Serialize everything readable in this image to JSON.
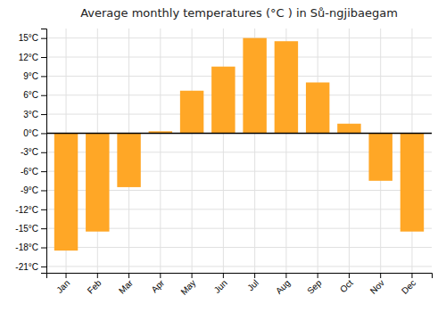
{
  "chart_data": {
    "type": "bar",
    "title": "Average monthly temperatures (°C ) in Sů-ngjibaegam",
    "categories": [
      "Jan",
      "Feb",
      "Mar",
      "Apr",
      "May",
      "Jun",
      "Jul",
      "Aug",
      "Sep",
      "Oct",
      "Nov",
      "Dec"
    ],
    "values": [
      -18.5,
      -15.5,
      -8.5,
      0.3,
      6.7,
      10.5,
      15.0,
      14.5,
      8.0,
      1.5,
      -7.5,
      -15.5
    ],
    "color": "#FFA726",
    "ylim": [
      -22,
      16.5
    ],
    "yticks": [
      {
        "value": -21,
        "label": "-21°C"
      },
      {
        "value": -18,
        "label": "-18°C"
      },
      {
        "value": -15,
        "label": "-15°C"
      },
      {
        "value": -12,
        "label": "-12°C"
      },
      {
        "value": -9,
        "label": "-9°C"
      },
      {
        "value": -6,
        "label": "-6°C"
      },
      {
        "value": -3,
        "label": "-3°C"
      },
      {
        "value": 0,
        "label": "0°C"
      },
      {
        "value": 3,
        "label": "3°C"
      },
      {
        "value": 6,
        "label": "6°C"
      },
      {
        "value": 9,
        "label": "9°C"
      },
      {
        "value": 12,
        "label": "12°C"
      },
      {
        "value": 15,
        "label": "15°C"
      }
    ],
    "grid": true
  }
}
